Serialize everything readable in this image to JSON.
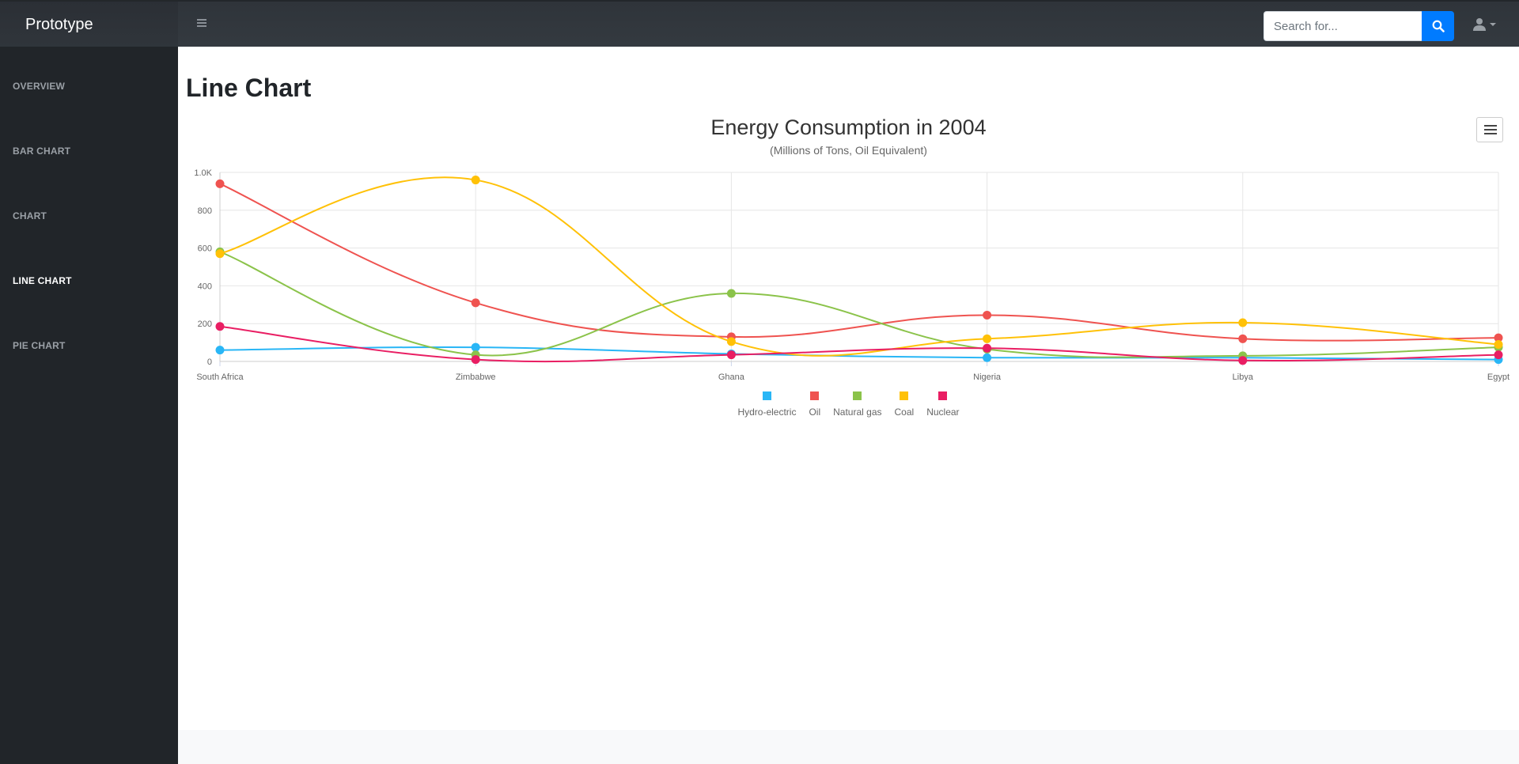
{
  "app": {
    "brand": "Prototype"
  },
  "search": {
    "placeholder": "Search for..."
  },
  "sidebar": {
    "items": [
      {
        "label": "OVERVIEW",
        "active": false
      },
      {
        "label": "BAR CHART",
        "active": false
      },
      {
        "label": "CHART",
        "active": false
      },
      {
        "label": "LINE CHART",
        "active": true
      },
      {
        "label": "PIE CHART",
        "active": false
      }
    ]
  },
  "page": {
    "title": "Line Chart"
  },
  "colors": {
    "accent": "#007bff",
    "sidebar": "#212529",
    "topbar": "#343a40"
  },
  "icons": {
    "menu": "hamburger-icon",
    "search": "search-icon",
    "user": "user-icon",
    "caret": "caret-down-icon",
    "chart_menu": "chart-context-menu-icon"
  },
  "chart_data": {
    "type": "line",
    "title": "Energy Consumption in 2004",
    "subtitle": "(Millions of Tons, Oil Equivalent)",
    "categories": [
      "South Africa",
      "Zimbabwe",
      "Ghana",
      "Nigeria",
      "Libya",
      "Egypt"
    ],
    "ylim": [
      0,
      1000
    ],
    "yticks": [
      "0",
      "200",
      "400",
      "600",
      "800",
      "1.0K"
    ],
    "grid": true,
    "legend_position": "bottom-center",
    "series": [
      {
        "name": "Hydro-electric",
        "color": "#29b6f6",
        "values": [
          60,
          75,
          40,
          20,
          20,
          10
        ]
      },
      {
        "name": "Oil",
        "color": "#ef5350",
        "values": [
          940,
          310,
          130,
          245,
          120,
          125
        ]
      },
      {
        "name": "Natural gas",
        "color": "#8bc34a",
        "values": [
          580,
          35,
          360,
          65,
          30,
          75
        ]
      },
      {
        "name": "Coal",
        "color": "#ffc107",
        "values": [
          570,
          960,
          105,
          120,
          205,
          90
        ]
      },
      {
        "name": "Nuclear",
        "color": "#e91e63",
        "values": [
          185,
          10,
          35,
          70,
          5,
          35
        ]
      }
    ]
  }
}
